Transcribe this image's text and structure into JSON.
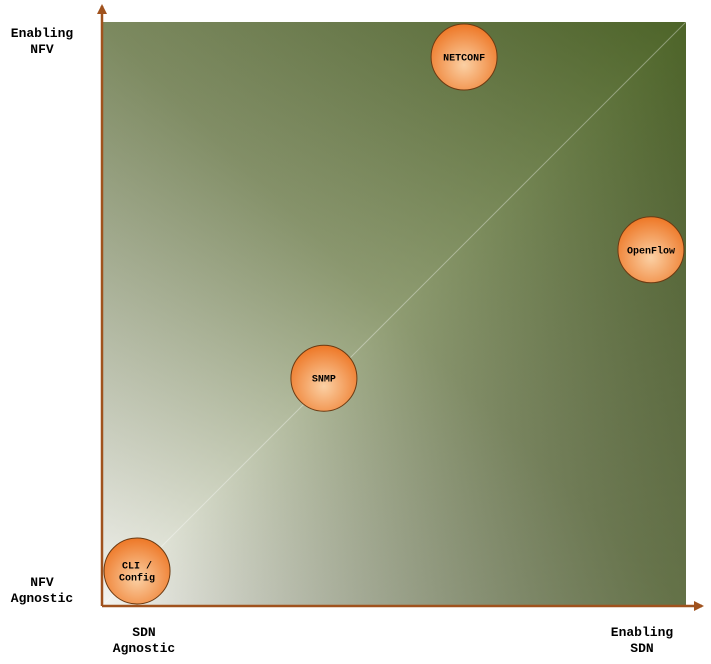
{
  "chart_data": {
    "type": "scatter",
    "x_axis": {
      "start_label": "SDN\nAgnostic",
      "end_label": "Enabling\nSDN"
    },
    "y_axis": {
      "start_label": "NFV\nAgnostic",
      "end_label": "Enabling\nNFV"
    },
    "xlim": [
      0,
      1
    ],
    "ylim": [
      0,
      1
    ],
    "points": [
      {
        "label_lines": [
          "CLI /",
          "Config"
        ],
        "x": 0.06,
        "y": 0.06
      },
      {
        "label_lines": [
          "SNMP"
        ],
        "x": 0.38,
        "y": 0.39
      },
      {
        "label_lines": [
          "NETCONF"
        ],
        "x": 0.62,
        "y": 0.94
      },
      {
        "label_lines": [
          "OpenFlow"
        ],
        "x": 0.94,
        "y": 0.61
      }
    ],
    "colors": {
      "axis": "#a0521d",
      "bubble": "#ee7a2a",
      "bubble_highlight": "#fbd0a4",
      "background_dark": "#4d6428",
      "background_light": "#f4f4f0"
    }
  }
}
